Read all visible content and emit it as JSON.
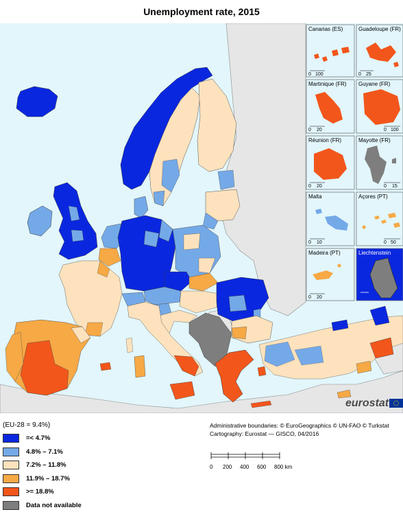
{
  "title": "Unemployment rate, 2015",
  "eu_average": "(EU-28  =  9.4%)",
  "legend": [
    {
      "label": "=< 4.7%",
      "color": "#0a27e0"
    },
    {
      "label": "4.8% – 7.1%",
      "color": "#74a9e8"
    },
    {
      "label": "7.2% – 11.8%",
      "color": "#fde2bd"
    },
    {
      "label": "11.9% – 18.7%",
      "color": "#f6a945"
    },
    {
      "label": ">= 18.8%",
      "color": "#f2561b"
    },
    {
      "label": "Data not available",
      "color": "#7e7e7e"
    }
  ],
  "credits": [
    "Administrative boundaries: © EuroGeographics © UN-FAO © Turkstat",
    "Cartography: Eurostat — GISCO, 04/2016"
  ],
  "scale": {
    "ticks": [
      "0",
      "200",
      "400",
      "600",
      "800 km"
    ]
  },
  "insets": [
    {
      "name": "Canarias (ES)",
      "scale": [
        "0",
        "100"
      ]
    },
    {
      "name": "Guadeloupe (FR)",
      "scale": [
        "0",
        "25"
      ]
    },
    {
      "name": "Martinique (FR)",
      "scale": [
        "0",
        "20"
      ]
    },
    {
      "name": "Guyane (FR)",
      "scale": [
        "0",
        "100"
      ]
    },
    {
      "name": "Réunion (FR)",
      "scale": [
        "0",
        "20"
      ]
    },
    {
      "name": "Mayotte (FR)",
      "scale": [
        "0",
        "15"
      ]
    },
    {
      "name": "Malta",
      "scale": [
        "0",
        "10"
      ]
    },
    {
      "name": "Açores (PT)",
      "scale": [
        "0",
        "50"
      ]
    },
    {
      "name": "Madeira (PT)",
      "scale": [
        "0",
        "20"
      ]
    },
    {
      "name": "Liechtenstein",
      "scale": []
    }
  ],
  "brand": "eurostat",
  "colors": {
    "sea": "#e2f6fb",
    "non_eu": "#e6e6e6",
    "border": "#666666"
  }
}
